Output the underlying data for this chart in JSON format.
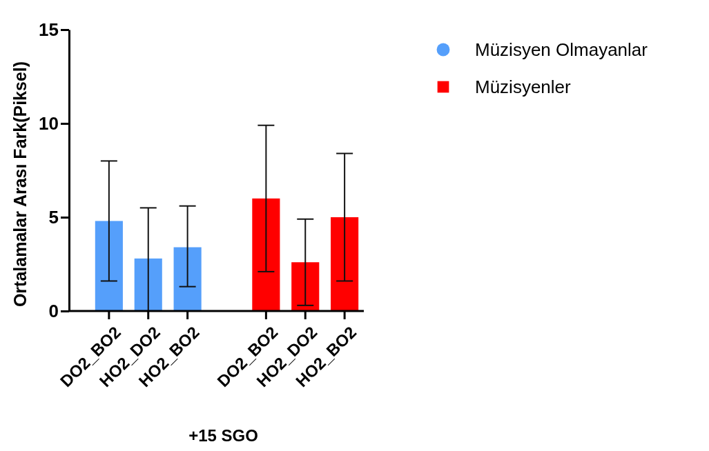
{
  "chart_data": {
    "type": "bar",
    "xlabel": "+15 SGO",
    "ylabel": "Ortalamalar Arası Fark(Piksel)",
    "categories": [
      "DO2_BO2",
      "HO2_DO2",
      "HO2_BO2",
      null,
      "DO2_BO2",
      "HO2_DO2",
      "HO2_BO2"
    ],
    "series": [
      {
        "name": "Müzisyen Olmayanlar",
        "color": "#559ffb",
        "marker": "circle",
        "values": [
          4.8,
          2.8,
          3.4,
          null,
          null,
          null,
          null
        ],
        "errors": [
          [
            1.6,
            8.0
          ],
          [
            0,
            5.5
          ],
          [
            1.3,
            5.6
          ],
          null,
          null,
          null,
          null
        ]
      },
      {
        "name": "Müzisyenler",
        "color": "#ff0000",
        "marker": "square",
        "values": [
          null,
          null,
          null,
          null,
          6.0,
          2.6,
          5.0
        ],
        "errors": [
          null,
          null,
          null,
          null,
          [
            2.1,
            9.9
          ],
          [
            0.3,
            4.9
          ],
          [
            1.6,
            8.4
          ]
        ]
      }
    ],
    "ylim": [
      0,
      15
    ],
    "yticks": [
      0,
      5,
      10,
      15
    ],
    "grid": false,
    "legend": "top right"
  }
}
